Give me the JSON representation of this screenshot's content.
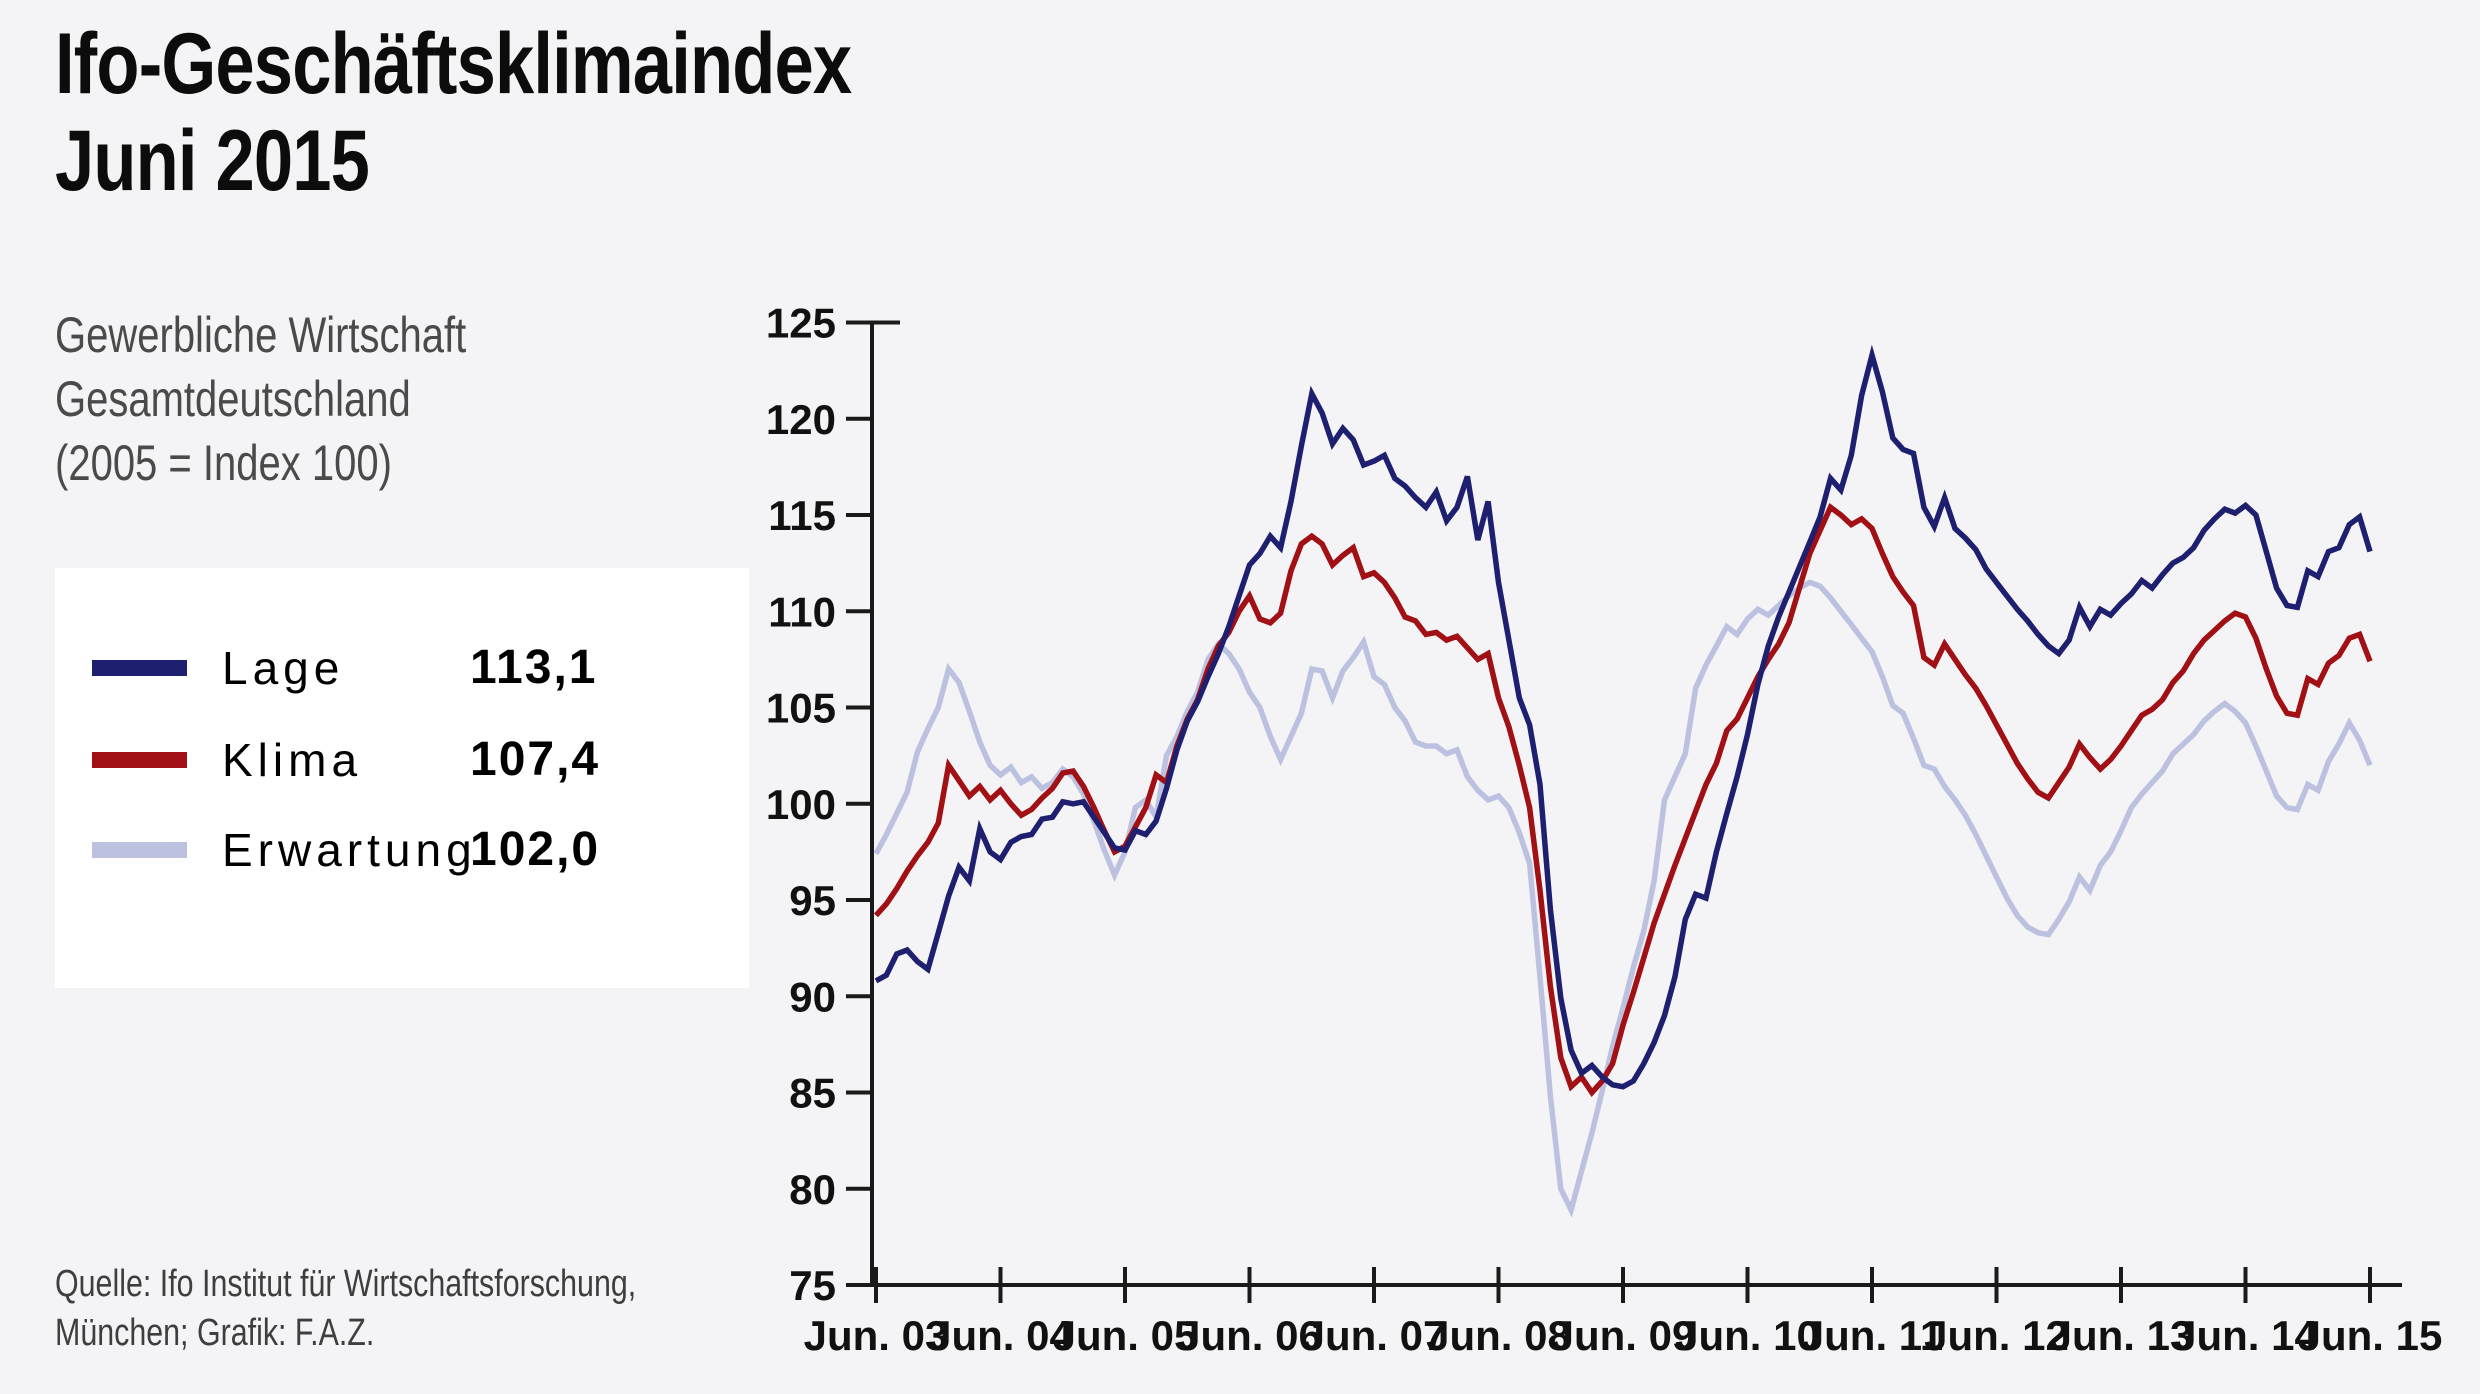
{
  "page": {
    "background": "#f4f4f6"
  },
  "header": {
    "title_line1": "Ifo-Geschäftsklimaindex",
    "title_line2": "Juni 2015",
    "subtitle_line1": "Gewerbliche Wirtschaft",
    "subtitle_line2": "Gesamtdeutschland",
    "subtitle_line3": "(2005 = Index 100)"
  },
  "legend": {
    "items": [
      {
        "label": "Lage",
        "value": "113,1",
        "color": "#1f1f70"
      },
      {
        "label": "Klima",
        "value": "107,4",
        "color": "#a01014"
      },
      {
        "label": "Erwartung",
        "value": "102,0",
        "color": "#bcc1e0"
      }
    ]
  },
  "source": {
    "line1": "Quelle: Ifo Institut für Wirtschaftsforschung,",
    "line2": "München; Grafik: F.A.Z."
  },
  "chart_data": {
    "type": "line",
    "title": "Ifo-Geschäftsklimaindex Juni 2015",
    "xlabel": "",
    "ylabel": "",
    "x_range": {
      "start": "Jun 2003",
      "end": "Jun 2015",
      "step": "monthly",
      "n_points": 145
    },
    "x_tick_labels": [
      "Jun. 03",
      "Jun. 04",
      "Jun. 05",
      "Jun. 06",
      "Jun. 07",
      "Jun. 08",
      "Jun. 09",
      "Jun. 10",
      "Jun. 11",
      "Jun. 12",
      "Jun. 13",
      "Jun. 14",
      "Jun. 15"
    ],
    "ylim": [
      75,
      125
    ],
    "y_tick_labels": [
      "125",
      "120",
      "115",
      "110",
      "105",
      "100",
      "95",
      "90",
      "85",
      "80",
      "75"
    ],
    "y_tick_values": [
      125,
      120,
      115,
      110,
      105,
      100,
      95,
      90,
      85,
      80,
      75
    ],
    "grid": false,
    "legend_position": "left panel",
    "axis_color": "#1a1a1a",
    "series": [
      {
        "name": "Erwartung",
        "color": "#bcc1e0",
        "final_value": 102.0,
        "values": [
          97.4,
          98.4,
          99.5,
          100.6,
          102.7,
          103.9,
          105.0,
          107.0,
          106.3,
          104.8,
          103.2,
          102.0,
          101.5,
          101.9,
          101.1,
          101.4,
          100.8,
          101.1,
          101.8,
          101.4,
          100.5,
          99.1,
          97.6,
          96.3,
          97.5,
          99.8,
          100.2,
          99.3,
          102.5,
          103.5,
          104.8,
          105.8,
          107.5,
          108.3,
          107.8,
          107.0,
          105.8,
          105.0,
          103.5,
          102.3,
          103.5,
          104.7,
          107.0,
          106.9,
          105.5,
          106.9,
          107.6,
          108.4,
          106.6,
          106.2,
          105.0,
          104.3,
          103.2,
          103.0,
          103.0,
          102.6,
          102.8,
          101.4,
          100.7,
          100.2,
          100.4,
          99.8,
          98.5,
          96.9,
          91.0,
          84.8,
          80.0,
          78.9,
          80.9,
          82.9,
          85.1,
          87.4,
          89.4,
          91.5,
          93.4,
          96.0,
          100.2,
          101.4,
          102.6,
          106.0,
          107.2,
          108.2,
          109.2,
          108.8,
          109.6,
          110.1,
          109.8,
          110.3,
          110.8,
          111.2,
          111.5,
          111.3,
          110.7,
          110.0,
          109.3,
          108.6,
          107.9,
          106.6,
          105.1,
          104.7,
          103.4,
          102.0,
          101.8,
          100.9,
          100.2,
          99.4,
          98.4,
          97.3,
          96.2,
          95.1,
          94.2,
          93.6,
          93.3,
          93.2,
          94.0,
          94.9,
          96.2,
          95.5,
          96.8,
          97.5,
          98.6,
          99.8,
          100.5,
          101.1,
          101.7,
          102.6,
          103.1,
          103.6,
          104.3,
          104.8,
          105.2,
          104.8,
          104.2,
          103.0,
          101.7,
          100.4,
          99.8,
          99.7,
          101.0,
          100.7,
          102.2,
          103.1,
          104.2,
          103.3,
          102.0
        ]
      },
      {
        "name": "Klima",
        "color": "#a01014",
        "final_value": 107.4,
        "values": [
          94.2,
          94.8,
          95.6,
          96.5,
          97.3,
          98.0,
          99.0,
          102.0,
          101.2,
          100.4,
          100.9,
          100.2,
          100.7,
          100.0,
          99.4,
          99.7,
          100.3,
          100.8,
          101.6,
          101.7,
          100.9,
          99.8,
          98.6,
          97.5,
          97.8,
          98.8,
          99.8,
          101.5,
          101.1,
          103.0,
          104.4,
          105.4,
          107.0,
          108.2,
          108.9,
          110.0,
          110.8,
          109.6,
          109.4,
          109.9,
          112.1,
          113.5,
          113.9,
          113.5,
          112.4,
          112.9,
          113.3,
          111.8,
          112.0,
          111.5,
          110.7,
          109.7,
          109.5,
          108.8,
          108.9,
          108.5,
          108.7,
          108.1,
          107.5,
          107.8,
          105.5,
          104.0,
          102.0,
          99.8,
          95.5,
          90.5,
          86.8,
          85.3,
          85.8,
          85.0,
          85.6,
          86.5,
          88.5,
          90.2,
          92.0,
          93.8,
          95.3,
          96.8,
          98.2,
          99.6,
          101.0,
          102.1,
          103.8,
          104.4,
          105.5,
          106.6,
          107.5,
          108.3,
          109.4,
          111.2,
          113.0,
          114.2,
          115.4,
          115.0,
          114.5,
          114.8,
          114.3,
          113.0,
          111.8,
          111.0,
          110.3,
          107.6,
          107.2,
          108.3,
          107.5,
          106.7,
          106.0,
          105.1,
          104.1,
          103.1,
          102.1,
          101.3,
          100.6,
          100.3,
          101.1,
          101.9,
          103.1,
          102.4,
          101.8,
          102.3,
          103.0,
          103.8,
          104.6,
          104.9,
          105.4,
          106.3,
          106.9,
          107.8,
          108.5,
          109.0,
          109.5,
          109.9,
          109.7,
          108.6,
          107.0,
          105.6,
          104.7,
          104.6,
          106.5,
          106.2,
          107.3,
          107.7,
          108.6,
          108.8,
          107.4
        ]
      },
      {
        "name": "Lage",
        "color": "#1f1f70",
        "final_value": 113.1,
        "values": [
          90.8,
          91.1,
          92.2,
          92.4,
          91.8,
          91.4,
          93.3,
          95.2,
          96.7,
          96.0,
          98.7,
          97.5,
          97.1,
          98.0,
          98.3,
          98.4,
          99.2,
          99.3,
          100.1,
          100.0,
          100.1,
          99.3,
          98.5,
          97.7,
          97.6,
          98.6,
          98.4,
          99.1,
          100.8,
          102.8,
          104.3,
          105.3,
          106.6,
          107.8,
          109.2,
          110.8,
          112.4,
          113.0,
          113.9,
          113.3,
          115.7,
          118.6,
          121.3,
          120.3,
          118.7,
          119.5,
          118.9,
          117.6,
          117.8,
          118.1,
          116.9,
          116.5,
          115.9,
          115.4,
          116.2,
          114.7,
          115.4,
          117.0,
          113.7,
          115.7,
          111.5,
          108.5,
          105.5,
          104.1,
          101.0,
          94.5,
          89.9,
          87.2,
          86.0,
          86.4,
          85.8,
          85.4,
          85.3,
          85.6,
          86.5,
          87.6,
          89.0,
          91.0,
          94.0,
          95.3,
          95.1,
          97.5,
          99.5,
          101.4,
          103.6,
          106.2,
          108.2,
          109.7,
          111.0,
          112.3,
          113.6,
          114.9,
          116.9,
          116.3,
          118.1,
          121.2,
          123.3,
          121.4,
          119.0,
          118.4,
          118.2,
          115.4,
          114.4,
          115.9,
          114.3,
          113.8,
          113.2,
          112.2,
          111.5,
          110.8,
          110.1,
          109.5,
          108.8,
          108.2,
          107.8,
          108.5,
          110.2,
          109.2,
          110.1,
          109.8,
          110.4,
          110.9,
          111.6,
          111.2,
          111.9,
          112.5,
          112.8,
          113.3,
          114.2,
          114.8,
          115.3,
          115.1,
          115.5,
          115.0,
          113.1,
          111.2,
          110.3,
          110.2,
          112.1,
          111.8,
          113.1,
          113.3,
          114.5,
          114.9,
          113.1
        ]
      }
    ]
  }
}
